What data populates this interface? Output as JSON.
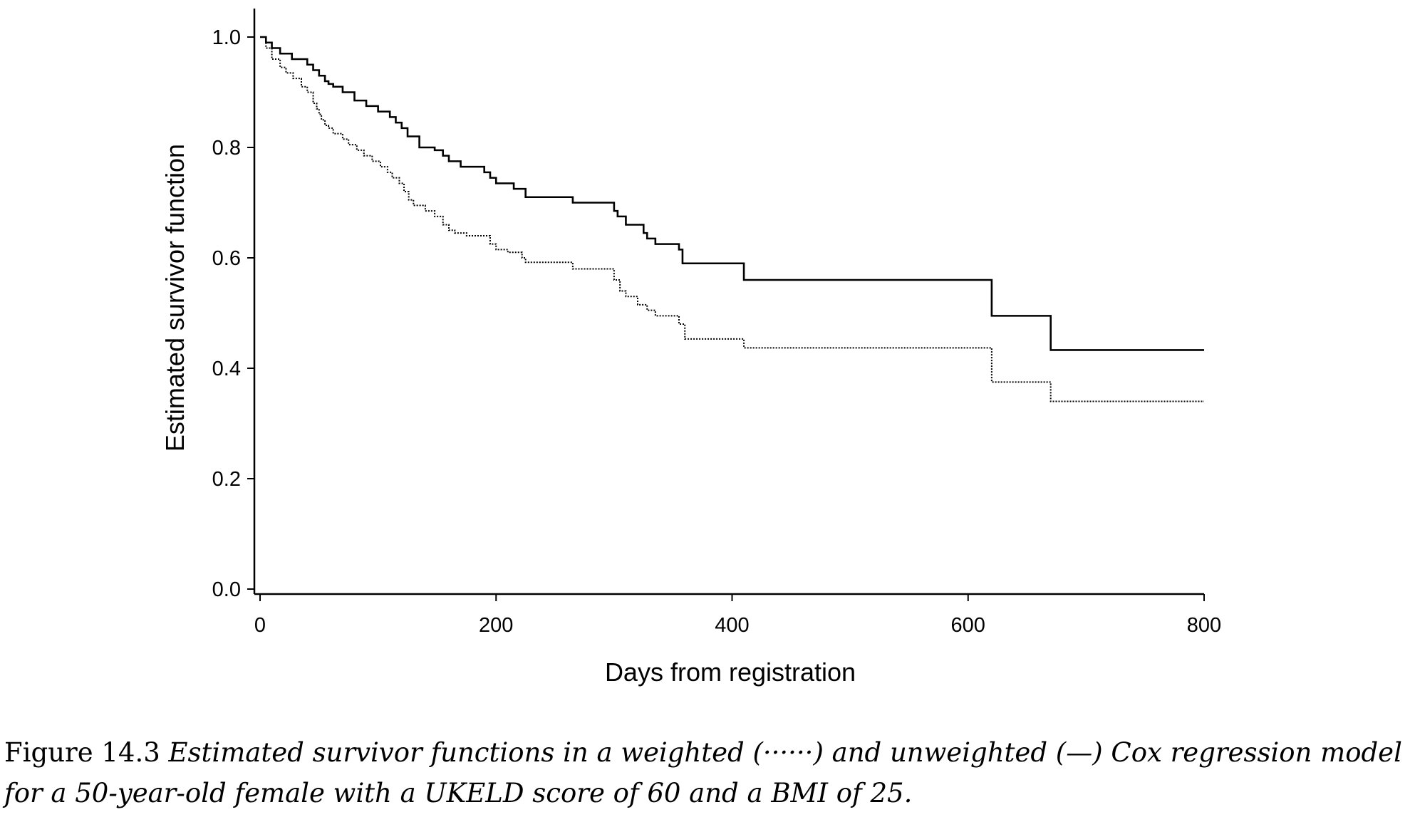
{
  "chart_data": {
    "type": "line",
    "step": true,
    "xlabel": "Days from registration",
    "ylabel": "Estimated survivor function",
    "xlim": [
      0,
      800
    ],
    "ylim": [
      0,
      1.0
    ],
    "xticks": [
      "0",
      "200",
      "400",
      "600",
      "800"
    ],
    "yticks": [
      "0.0",
      "0.2",
      "0.4",
      "0.6",
      "0.8",
      "1.0"
    ],
    "grid": false,
    "series": [
      {
        "line_style": "solid",
        "x": [
          0,
          5,
          10,
          17,
          27,
          40,
          45,
          50,
          55,
          58,
          62,
          70,
          80,
          90,
          100,
          110,
          115,
          120,
          125,
          135,
          148,
          155,
          160,
          170,
          190,
          195,
          200,
          215,
          225,
          265,
          300,
          303,
          310,
          325,
          328,
          335,
          355,
          358,
          410,
          620,
          670,
          800
        ],
        "y": [
          1.0,
          0.99,
          0.98,
          0.97,
          0.96,
          0.95,
          0.94,
          0.93,
          0.92,
          0.915,
          0.91,
          0.9,
          0.885,
          0.875,
          0.865,
          0.855,
          0.845,
          0.835,
          0.82,
          0.8,
          0.795,
          0.785,
          0.775,
          0.765,
          0.755,
          0.745,
          0.735,
          0.725,
          0.71,
          0.7,
          0.685,
          0.675,
          0.66,
          0.645,
          0.635,
          0.625,
          0.615,
          0.59,
          0.56,
          0.495,
          0.433,
          0.433
        ]
      },
      {
        "line_style": "dotted",
        "x": [
          0,
          5,
          10,
          17,
          22,
          28,
          35,
          40,
          45,
          48,
          50,
          52,
          55,
          58,
          62,
          70,
          75,
          82,
          88,
          95,
          102,
          108,
          112,
          118,
          122,
          126,
          130,
          140,
          148,
          155,
          160,
          165,
          175,
          195,
          200,
          210,
          222,
          225,
          265,
          300,
          305,
          310,
          320,
          328,
          335,
          355,
          360,
          410,
          620,
          670,
          800
        ],
        "y": [
          1.0,
          0.98,
          0.96,
          0.945,
          0.935,
          0.925,
          0.91,
          0.9,
          0.88,
          0.87,
          0.86,
          0.85,
          0.84,
          0.835,
          0.825,
          0.815,
          0.805,
          0.795,
          0.785,
          0.775,
          0.765,
          0.755,
          0.745,
          0.735,
          0.72,
          0.705,
          0.695,
          0.685,
          0.675,
          0.66,
          0.65,
          0.645,
          0.64,
          0.625,
          0.615,
          0.61,
          0.6,
          0.592,
          0.58,
          0.56,
          0.54,
          0.53,
          0.515,
          0.505,
          0.495,
          0.48,
          0.453,
          0.437,
          0.375,
          0.34,
          0.34
        ]
      }
    ]
  },
  "caption": {
    "label": "Figure 14.3",
    "text": "Estimated survivor functions in a weighted (······) and unweighted (—) Cox regression model for a 50-year-old female with a UKELD score of 60 and a BMI of 25."
  }
}
